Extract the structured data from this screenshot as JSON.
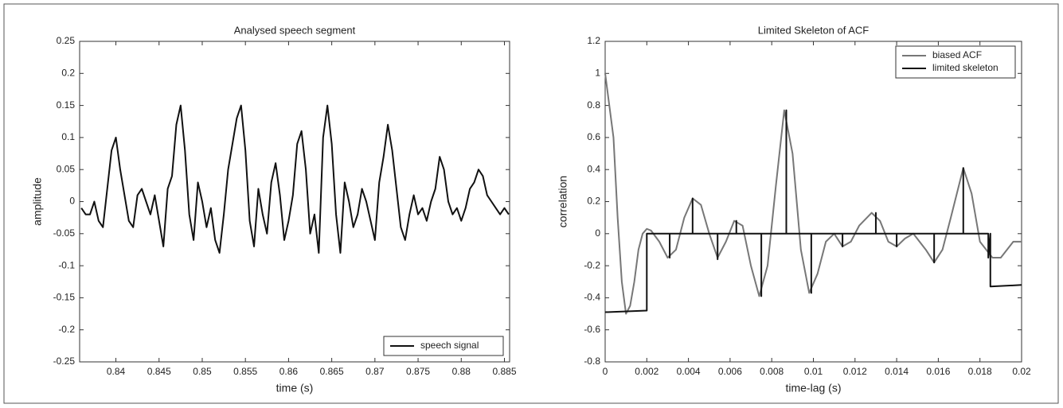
{
  "chart_data": [
    {
      "type": "line",
      "title": "Analysed speech segment",
      "xlabel": "time (s)",
      "ylabel": "amplitude",
      "xlim": [
        0.8358,
        0.8856
      ],
      "xticks": [
        0.84,
        0.845,
        0.85,
        0.855,
        0.86,
        0.865,
        0.87,
        0.875,
        0.88,
        0.885
      ],
      "ylim": [
        -0.25,
        0.25
      ],
      "yticks": [
        -0.25,
        -0.2,
        -0.15,
        -0.1,
        -0.05,
        0,
        0.05,
        0.1,
        0.15,
        0.2,
        0.25
      ],
      "legend": "lower right",
      "series": [
        {
          "name": "speech signal",
          "color": "#111111",
          "x": [
            0.836,
            0.8365,
            0.837,
            0.8375,
            0.838,
            0.8385,
            0.839,
            0.8395,
            0.84,
            0.8405,
            0.841,
            0.8415,
            0.842,
            0.8425,
            0.843,
            0.8435,
            0.844,
            0.8445,
            0.845,
            0.8455,
            0.846,
            0.8465,
            0.847,
            0.8475,
            0.848,
            0.8485,
            0.849,
            0.8495,
            0.85,
            0.8505,
            0.851,
            0.8515,
            0.852,
            0.8525,
            0.853,
            0.8535,
            0.854,
            0.8545,
            0.855,
            0.8555,
            0.856,
            0.8565,
            0.857,
            0.8575,
            0.858,
            0.8585,
            0.859,
            0.8595,
            0.86,
            0.8605,
            0.861,
            0.8615,
            0.862,
            0.8625,
            0.863,
            0.8635,
            0.864,
            0.8645,
            0.865,
            0.8655,
            0.866,
            0.8665,
            0.867,
            0.8675,
            0.868,
            0.8685,
            0.869,
            0.8695,
            0.87,
            0.8705,
            0.871,
            0.8715,
            0.872,
            0.8725,
            0.873,
            0.8735,
            0.874,
            0.8745,
            0.875,
            0.8755,
            0.876,
            0.8765,
            0.877,
            0.8775,
            0.878,
            0.8785,
            0.879,
            0.8795,
            0.88,
            0.8805,
            0.881,
            0.8815,
            0.882,
            0.8825,
            0.883,
            0.8835,
            0.884,
            0.8845,
            0.885,
            0.8855
          ],
          "values": [
            -0.01,
            -0.02,
            -0.02,
            0,
            -0.03,
            -0.04,
            0.02,
            0.08,
            0.1,
            0.05,
            0.01,
            -0.03,
            -0.04,
            0.01,
            0.02,
            0,
            -0.02,
            0.01,
            -0.03,
            -0.07,
            0.02,
            0.04,
            0.12,
            0.15,
            0.08,
            -0.02,
            -0.06,
            0.03,
            0,
            -0.04,
            -0.01,
            -0.06,
            -0.08,
            -0.02,
            0.05,
            0.09,
            0.13,
            0.15,
            0.08,
            -0.03,
            -0.07,
            0.02,
            -0.02,
            -0.05,
            0.03,
            0.06,
            0.01,
            -0.06,
            -0.03,
            0.01,
            0.09,
            0.11,
            0.05,
            -0.05,
            -0.02,
            -0.08,
            0.1,
            0.15,
            0.09,
            -0.02,
            -0.08,
            0.03,
            0,
            -0.04,
            -0.02,
            0.02,
            0,
            -0.03,
            -0.06,
            0.03,
            0.07,
            0.12,
            0.08,
            0.02,
            -0.04,
            -0.06,
            -0.02,
            0.01,
            -0.02,
            -0.01,
            -0.03,
            0,
            0.02,
            0.07,
            0.05,
            0,
            -0.02,
            -0.01,
            -0.03,
            -0.01,
            0.02,
            0.03,
            0.05,
            0.04,
            0.01,
            0,
            -0.01,
            -0.02,
            -0.01,
            -0.02
          ]
        }
      ]
    },
    {
      "type": "line",
      "title": "Limited Skeleton of ACF",
      "xlabel": "time-lag (s)",
      "ylabel": "correlation",
      "xlim": [
        0,
        0.02
      ],
      "xticks": [
        0,
        0.002,
        0.004,
        0.006,
        0.008,
        0.01,
        0.012,
        0.014,
        0.016,
        0.018,
        0.02
      ],
      "ylim": [
        -0.8,
        1.2
      ],
      "yticks": [
        -0.8,
        -0.6,
        -0.4,
        -0.2,
        0,
        0.2,
        0.4,
        0.6,
        0.8,
        1,
        1.2
      ],
      "legend": "upper right",
      "series": [
        {
          "name": "biased ACF",
          "color": "#777777",
          "x": [
            0,
            0.0004,
            0.0006,
            0.0008,
            0.001,
            0.0012,
            0.0014,
            0.0016,
            0.0018,
            0.002,
            0.0022,
            0.0026,
            0.003,
            0.0034,
            0.0038,
            0.0042,
            0.0046,
            0.005,
            0.0054,
            0.0058,
            0.0062,
            0.0066,
            0.007,
            0.0074,
            0.0078,
            0.0082,
            0.0086,
            0.009,
            0.0094,
            0.0098,
            0.0102,
            0.0106,
            0.011,
            0.0114,
            0.0118,
            0.0122,
            0.0128,
            0.0132,
            0.0136,
            0.014,
            0.0144,
            0.0148,
            0.0154,
            0.0158,
            0.0162,
            0.0166,
            0.0172,
            0.0176,
            0.018,
            0.0186,
            0.019,
            0.0196,
            0.02
          ],
          "values": [
            1,
            0.6,
            0.1,
            -0.3,
            -0.5,
            -0.45,
            -0.3,
            -0.1,
            0,
            0.03,
            0.02,
            -0.05,
            -0.15,
            -0.1,
            0.1,
            0.22,
            0.18,
            0,
            -0.15,
            -0.05,
            0.08,
            0.05,
            -0.2,
            -0.39,
            -0.2,
            0.3,
            0.77,
            0.5,
            -0.1,
            -0.37,
            -0.25,
            -0.05,
            0,
            -0.08,
            -0.05,
            0.05,
            0.13,
            0.08,
            -0.05,
            -0.08,
            -0.03,
            0,
            -0.1,
            -0.18,
            -0.1,
            0.1,
            0.41,
            0.25,
            -0.05,
            -0.15,
            -0.15,
            -0.05,
            -0.05
          ]
        },
        {
          "name": "limited skeleton",
          "color": "#111111",
          "x": [
            0,
            0.002,
            0.002,
            0.0031,
            0.0031,
            0.0031,
            0.0042,
            0.0042,
            0.0042,
            0.0054,
            0.0054,
            0.0054,
            0.0063,
            0.0063,
            0.0063,
            0.0075,
            0.0075,
            0.0075,
            0.0087,
            0.0087,
            0.0087,
            0.0099,
            0.0099,
            0.0099,
            0.0114,
            0.0114,
            0.0114,
            0.013,
            0.013,
            0.013,
            0.014,
            0.014,
            0.014,
            0.0158,
            0.0158,
            0.0158,
            0.0172,
            0.0172,
            0.0172,
            0.0184,
            0.0184,
            0.0185,
            0.0185,
            0.02
          ],
          "values": [
            -0.49,
            -0.48,
            0,
            0,
            -0.15,
            0,
            0,
            0.22,
            0,
            0,
            -0.16,
            0,
            0,
            0.08,
            0,
            0,
            -0.39,
            0,
            0,
            0.77,
            0,
            0,
            -0.37,
            0,
            0,
            -0.08,
            0,
            0,
            0.13,
            0,
            0,
            -0.08,
            0,
            0,
            -0.18,
            0,
            0,
            0.41,
            0,
            0,
            -0.15,
            0,
            -0.33,
            -0.32
          ]
        }
      ]
    }
  ]
}
